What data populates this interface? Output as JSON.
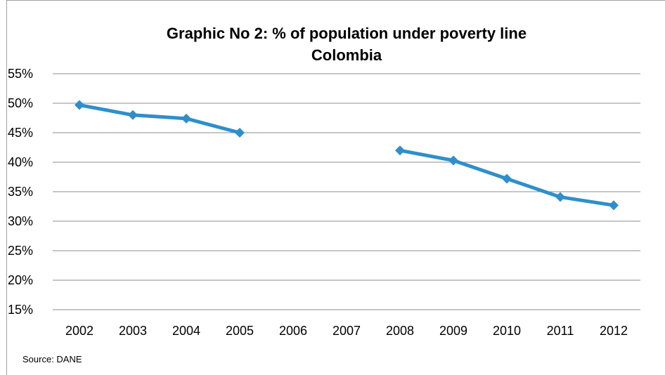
{
  "chart_data": {
    "type": "line",
    "title_line1": "Graphic No 2: % of population under poverty line",
    "title_line2": "Colombia",
    "xlabel": "",
    "ylabel": "",
    "source": "Source: DANE",
    "categories": [
      "2002",
      "2003",
      "2004",
      "2005",
      "2006",
      "2007",
      "2008",
      "2009",
      "2010",
      "2011",
      "2012"
    ],
    "series": [
      {
        "values": [
          49.7,
          48.0,
          47.4,
          45.0,
          null,
          null,
          42.0,
          40.3,
          37.2,
          34.1,
          32.7
        ]
      }
    ],
    "ylim": [
      15,
      55
    ],
    "yticks": [
      15,
      20,
      25,
      30,
      35,
      40,
      45,
      50,
      55
    ],
    "ytick_labels": [
      "15%",
      "20%",
      "25%",
      "30%",
      "35%",
      "40%",
      "45%",
      "50%",
      "55%"
    ],
    "grid": true,
    "legend": "none",
    "colors": {
      "series": "#2e8fcb",
      "grid": "#8c8c8c"
    }
  }
}
